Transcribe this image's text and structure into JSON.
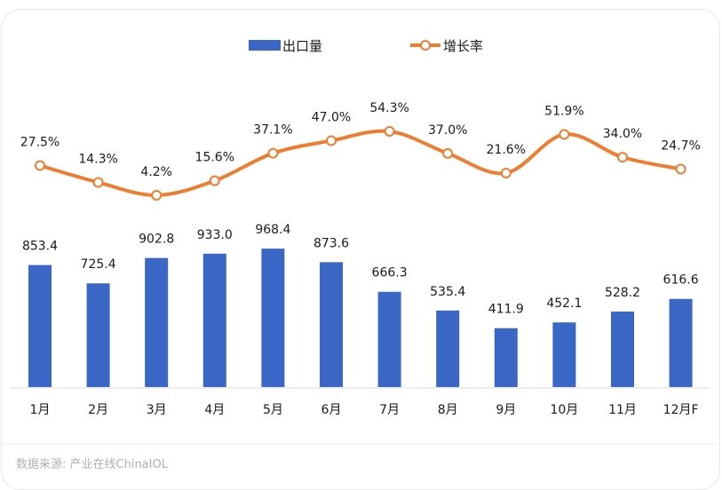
{
  "chart_data": {
    "type": "bar+line",
    "categories": [
      "1月",
      "2月",
      "3月",
      "4月",
      "5月",
      "6月",
      "7月",
      "8月",
      "9月",
      "10月",
      "11月",
      "12月F"
    ],
    "series": [
      {
        "name": "出口量",
        "type": "bar",
        "color": "#3a67c6",
        "values": [
          853.4,
          725.4,
          902.8,
          933.0,
          968.4,
          873.6,
          666.3,
          535.4,
          411.9,
          452.1,
          528.2,
          616.6
        ],
        "labels": [
          "853.4",
          "725.4",
          "902.8",
          "933.0",
          "968.4",
          "873.6",
          "666.3",
          "535.4",
          "411.9",
          "452.1",
          "528.2",
          "616.6"
        ]
      },
      {
        "name": "增长率",
        "type": "line",
        "color": "#ed7d31",
        "values": [
          27.5,
          14.3,
          4.2,
          15.6,
          37.1,
          47.0,
          54.3,
          37.0,
          21.6,
          51.9,
          34.0,
          24.7
        ],
        "labels": [
          "27.5%",
          "14.3%",
          "4.2%",
          "15.6%",
          "37.1%",
          "47.0%",
          "54.3%",
          "37.0%",
          "21.6%",
          "51.9%",
          "34.0%",
          "24.7%"
        ]
      }
    ],
    "legend": "top",
    "grid": false
  },
  "footer": {
    "source": "数据来源: 产业在线ChinaIOL"
  }
}
